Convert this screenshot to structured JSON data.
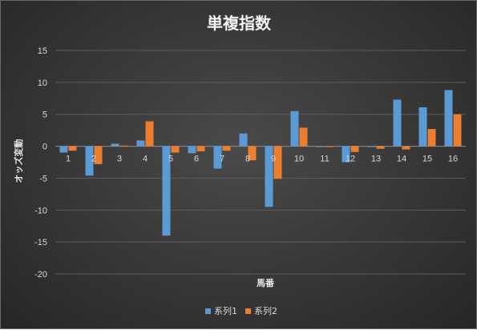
{
  "chart_data": {
    "type": "bar",
    "title": "単複指数",
    "xlabel": "馬番",
    "ylabel": "オッズ変動",
    "categories": [
      "1",
      "2",
      "3",
      "4",
      "5",
      "6",
      "7",
      "8",
      "9",
      "10",
      "11",
      "12",
      "13",
      "14",
      "15",
      "16"
    ],
    "series": [
      {
        "name": "系列1",
        "color": "#5b9bd5",
        "values": [
          -1.0,
          -4.6,
          0.4,
          0.9,
          -14.0,
          -1.1,
          -3.5,
          2.0,
          -9.5,
          5.5,
          -0.1,
          -2.5,
          -0.1,
          7.3,
          6.1,
          8.8
        ]
      },
      {
        "name": "系列2",
        "color": "#ed7d31",
        "values": [
          -0.7,
          -2.8,
          0.1,
          3.9,
          -1.0,
          -0.8,
          -0.7,
          -2.2,
          -5.1,
          2.9,
          -0.1,
          -0.9,
          -0.4,
          -0.5,
          2.7,
          5.0
        ]
      }
    ],
    "ylim": [
      -20,
      15
    ],
    "yticks": [
      15,
      10,
      5,
      0,
      -5,
      -10,
      -15,
      -20
    ],
    "grid": true,
    "legend_position": "bottom"
  }
}
